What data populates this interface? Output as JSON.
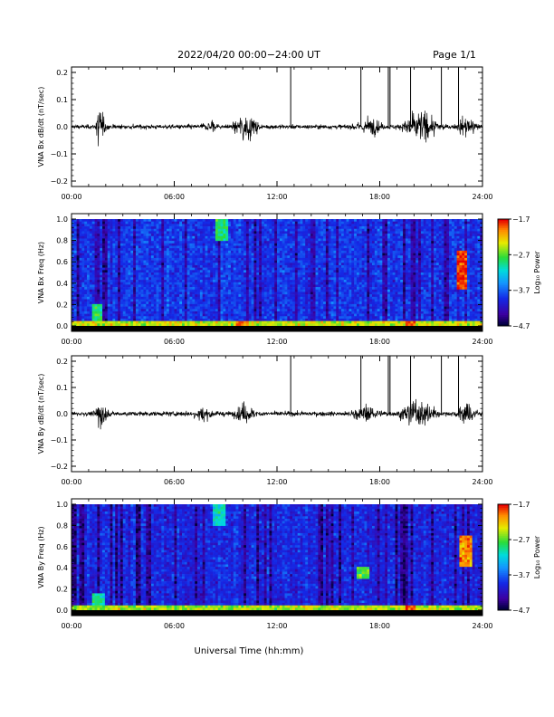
{
  "header": {
    "title": "2022/04/20  00:00−24:00 UT",
    "page": "Page 1/1"
  },
  "x_axis_title": "Universal Time (hh:mm)",
  "time_ticks": [
    "00:00",
    "06:00",
    "12:00",
    "18:00",
    "24:00"
  ],
  "chart_data": [
    {
      "type": "line",
      "ylabel": "VNA Bx dB/dt (nT/sec)",
      "xlim_hours": [
        0,
        24
      ],
      "ylim": [
        -0.2,
        0.2
      ],
      "yticks": [
        "0.2",
        "0.1",
        "0.0",
        "−0.1",
        "−0.2"
      ],
      "baseline": 0.0,
      "noise_floor": 0.008,
      "activity": [
        {
          "start": 1.4,
          "peak": 1.5,
          "end": 2.2,
          "amp": 0.11
        },
        {
          "start": 7.3,
          "peak": 8.2,
          "end": 8.8,
          "amp": 0.04
        },
        {
          "start": 9.2,
          "peak": 10.2,
          "end": 11.2,
          "amp": 0.08
        },
        {
          "start": 16.0,
          "peak": 17.5,
          "end": 18.6,
          "amp": 0.05
        },
        {
          "start": 18.8,
          "peak": 20.4,
          "end": 21.8,
          "amp": 0.09
        },
        {
          "start": 22.3,
          "peak": 23.1,
          "end": 24.0,
          "amp": 0.07
        }
      ],
      "spikes_hours": [
        12.8,
        16.9,
        18.5,
        18.6,
        19.8,
        21.6,
        22.6
      ],
      "spike_values": [
        0.21,
        0.21,
        0.21,
        0.21,
        0.21,
        0.21,
        0.21
      ]
    },
    {
      "type": "heatmap",
      "ylabel": "VNA Bx Freq (Hz)",
      "xlim_hours": [
        0,
        24
      ],
      "ylim": [
        0.0,
        1.0
      ],
      "yticks": [
        "1.0",
        "0.8",
        "0.6",
        "0.4",
        "0.2",
        "0.0"
      ],
      "colorbar": {
        "label": "Log₁₀ Power",
        "ticks": [
          "−1.7",
          "−2.7",
          "−3.7",
          "−4.7"
        ],
        "range": [
          -4.7,
          -1.7
        ]
      },
      "mean_log_power": -3.9,
      "low_freq_band_log_power": -2.4,
      "hot_spots": [
        {
          "hour": 1.5,
          "freq_low": 0.0,
          "freq_high": 0.2,
          "log_power": -2.9
        },
        {
          "hour": 8.8,
          "freq_low": 0.8,
          "freq_high": 1.0,
          "log_power": -2.9
        },
        {
          "hour": 10.0,
          "freq_low": 0.0,
          "freq_high": 0.05,
          "log_power": -2.0
        },
        {
          "hour": 19.8,
          "freq_low": 0.0,
          "freq_high": 0.05,
          "log_power": -1.9
        },
        {
          "hour": 22.8,
          "freq_low": 0.35,
          "freq_high": 0.7,
          "log_power": -1.8
        }
      ]
    },
    {
      "type": "line",
      "ylabel": "VNA By dB/dt (nT/sec)",
      "xlim_hours": [
        0,
        24
      ],
      "ylim": [
        -0.2,
        0.2
      ],
      "yticks": [
        "0.2",
        "0.1",
        "0.0",
        "−0.1",
        "−0.2"
      ],
      "baseline": 0.0,
      "noise_floor": 0.009,
      "activity": [
        {
          "start": 1.4,
          "peak": 1.6,
          "end": 2.3,
          "amp": 0.1
        },
        {
          "start": 6.8,
          "peak": 7.6,
          "end": 8.5,
          "amp": 0.05
        },
        {
          "start": 9.2,
          "peak": 10.1,
          "end": 11.2,
          "amp": 0.06
        },
        {
          "start": 15.8,
          "peak": 17.2,
          "end": 18.6,
          "amp": 0.05
        },
        {
          "start": 18.8,
          "peak": 20.3,
          "end": 21.8,
          "amp": 0.09
        },
        {
          "start": 22.2,
          "peak": 23.0,
          "end": 24.0,
          "amp": 0.07
        }
      ],
      "spikes_hours": [
        12.8,
        16.9,
        18.5,
        18.6,
        19.8,
        21.6,
        22.6
      ],
      "spike_values": [
        0.21,
        0.21,
        0.21,
        0.21,
        0.21,
        0.21,
        0.21
      ]
    },
    {
      "type": "heatmap",
      "ylabel": "VNA By Freq (Hz)",
      "xlim_hours": [
        0,
        24
      ],
      "ylim": [
        0.0,
        1.0
      ],
      "yticks": [
        "1.0",
        "0.8",
        "0.6",
        "0.4",
        "0.2",
        "0.0"
      ],
      "colorbar": {
        "label": "Log₁₀ Power",
        "ticks": [
          "−1.7",
          "−2.7",
          "−3.7",
          "−4.7"
        ],
        "range": [
          -4.7,
          -1.7
        ]
      },
      "mean_log_power": -4.0,
      "low_freq_band_log_power": -2.5,
      "hot_spots": [
        {
          "hour": 1.6,
          "freq_low": 0.0,
          "freq_high": 0.15,
          "log_power": -3.0
        },
        {
          "hour": 8.6,
          "freq_low": 0.8,
          "freq_high": 1.0,
          "log_power": -3.1
        },
        {
          "hour": 17.0,
          "freq_low": 0.3,
          "freq_high": 0.4,
          "log_power": -2.7
        },
        {
          "hour": 19.8,
          "freq_low": 0.0,
          "freq_high": 0.05,
          "log_power": -1.9
        },
        {
          "hour": 23.0,
          "freq_low": 0.4,
          "freq_high": 0.7,
          "log_power": -2.0
        }
      ]
    }
  ]
}
